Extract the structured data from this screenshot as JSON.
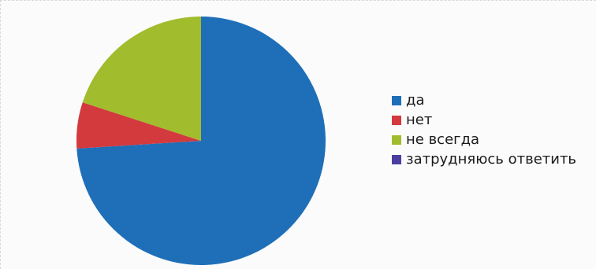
{
  "chart_data": {
    "type": "pie",
    "slices": [
      {
        "label": "да",
        "value": 74,
        "color": "#1f6fb8"
      },
      {
        "label": "нет",
        "value": 6,
        "color": "#d23a3e"
      },
      {
        "label": "не всегда",
        "value": 20,
        "color": "#a1bc2c"
      },
      {
        "label": "затрудняюсь ответить",
        "value": 0,
        "color": "#4a3fa0"
      }
    ],
    "start_angle_deg": 0,
    "direction": "clockwise",
    "legend": {
      "position": "right",
      "items": [
        "да",
        "нет",
        "не всегда",
        "затрудняюсь ответить"
      ]
    }
  }
}
